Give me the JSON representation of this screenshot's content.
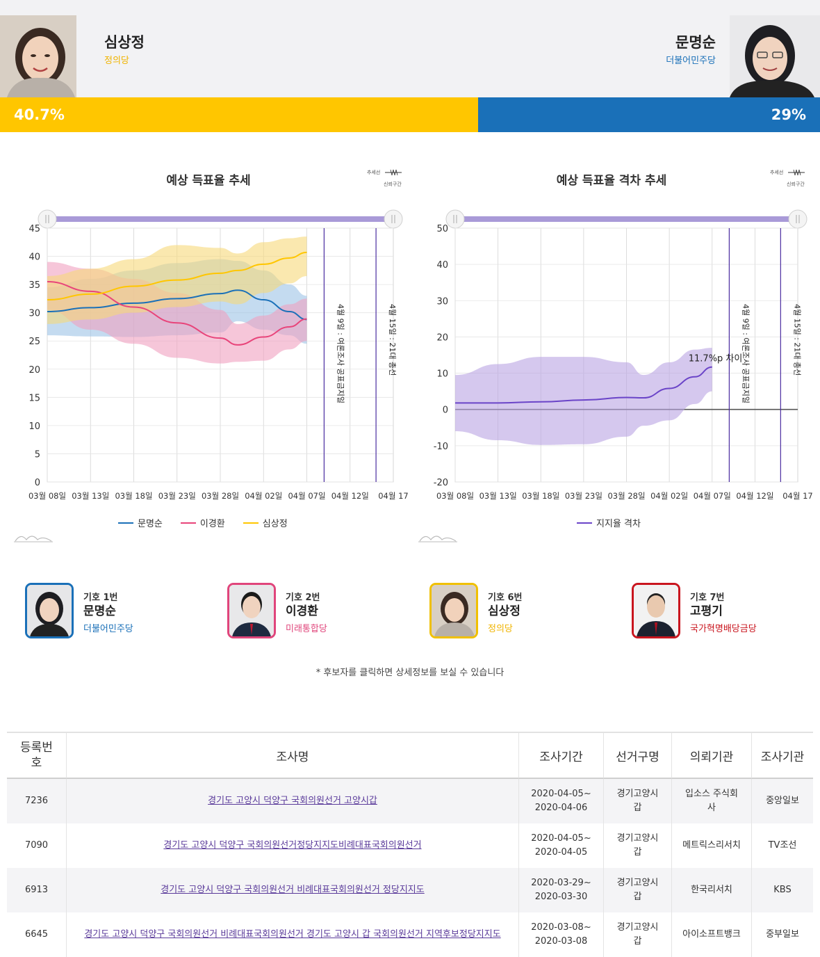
{
  "header": {
    "left": {
      "name": "심상정",
      "party": "정의당",
      "pct": "40.7%",
      "color": "#ffc600",
      "party_color": "#f0b400",
      "share": 0.583
    },
    "right": {
      "name": "문명순",
      "party": "더불어민주당",
      "pct": "29%",
      "color": "#1a70b8",
      "party_color": "#1a70b8"
    }
  },
  "charts": {
    "left": {
      "title": "예상 득표율 추세",
      "mini_legend": [
        "추세선",
        "신뢰구간"
      ]
    },
    "right": {
      "title": "예상 득표율 격차 추세",
      "mini_legend": [
        "추세선",
        "신뢰구간"
      ],
      "annotation": "11.7%p 차이"
    }
  },
  "chart_data": [
    {
      "type": "line",
      "title": "예상 득표율 추세",
      "x_ticks": [
        "03월 08일",
        "03월 13일",
        "03월 18일",
        "03월 23일",
        "03월 28일",
        "04월 02일",
        "04월 07일",
        "04월 12일",
        "04월 17"
      ],
      "y_ticks": [
        0,
        5,
        10,
        15,
        20,
        25,
        30,
        35,
        40,
        45
      ],
      "ylim": [
        0,
        45
      ],
      "xlim": [
        "2020-03-08",
        "2020-04-17"
      ],
      "markers": [
        {
          "date": "2020-04-09",
          "label": "4월 9일 : 여론조사 공표금지일"
        },
        {
          "date": "2020-04-15",
          "label": "4월 15일 : 21대 총선"
        }
      ],
      "grid": true,
      "legend_position": "bottom",
      "series": [
        {
          "name": "문명순",
          "color": "#1a70b8",
          "band_color": "#9cc3e6",
          "dates": [
            "2020-03-08",
            "2020-03-13",
            "2020-03-18",
            "2020-03-23",
            "2020-03-28",
            "2020-03-30",
            "2020-04-02",
            "2020-04-05",
            "2020-04-07"
          ],
          "values": [
            30.2,
            30.9,
            31.7,
            32.5,
            33.4,
            34.0,
            32.3,
            30.2,
            28.8
          ],
          "band_low": [
            26.0,
            25.8,
            25.7,
            26.0,
            26.5,
            28.5,
            27.0,
            26.0,
            24.5
          ],
          "band_high": [
            34.5,
            36.0,
            37.5,
            38.8,
            39.5,
            39.2,
            37.5,
            35.0,
            33.0
          ]
        },
        {
          "name": "이경환",
          "color": "#e8447a",
          "band_color": "#f0a0bf",
          "dates": [
            "2020-03-08",
            "2020-03-13",
            "2020-03-18",
            "2020-03-23",
            "2020-03-28",
            "2020-03-30",
            "2020-04-02",
            "2020-04-05",
            "2020-04-07"
          ],
          "values": [
            35.5,
            33.8,
            31.0,
            28.2,
            25.5,
            24.3,
            25.7,
            27.5,
            28.9
          ],
          "band_low": [
            30.5,
            27.0,
            24.5,
            22.0,
            21.0,
            21.3,
            21.5,
            23.5,
            25.0
          ],
          "band_high": [
            39.0,
            37.8,
            36.0,
            33.5,
            30.5,
            28.0,
            29.5,
            31.5,
            32.5
          ]
        },
        {
          "name": "심상정",
          "color": "#ffc600",
          "band_color": "#f7d87a",
          "dates": [
            "2020-03-08",
            "2020-03-13",
            "2020-03-18",
            "2020-03-23",
            "2020-03-28",
            "2020-03-30",
            "2020-04-02",
            "2020-04-05",
            "2020-04-07"
          ],
          "values": [
            32.3,
            33.3,
            34.7,
            35.8,
            37.0,
            37.5,
            38.6,
            39.7,
            40.7
          ],
          "band_low": [
            28.0,
            28.8,
            30.0,
            31.0,
            32.0,
            31.5,
            33.5,
            35.2,
            36.5
          ],
          "band_high": [
            36.5,
            37.8,
            39.5,
            42.0,
            41.5,
            40.5,
            42.5,
            43.2,
            43.5
          ]
        }
      ]
    },
    {
      "type": "line",
      "title": "예상 득표율 격차 추세",
      "x_ticks": [
        "03월 08일",
        "03월 13일",
        "03월 18일",
        "03월 23일",
        "03월 28일",
        "04월 02일",
        "04월 07일",
        "04월 12일",
        "04월 17"
      ],
      "y_ticks": [
        -20,
        -10,
        0,
        10,
        20,
        30,
        40,
        50
      ],
      "ylim": [
        -20,
        50
      ],
      "xlim": [
        "2020-03-08",
        "2020-04-17"
      ],
      "markers": [
        {
          "date": "2020-04-09",
          "label": "4월 9일 : 여론조사 공표금지일"
        },
        {
          "date": "2020-04-15",
          "label": "4월 15일 : 21대 총선"
        }
      ],
      "grid": true,
      "legend_position": "bottom",
      "series": [
        {
          "name": "지지율 격차",
          "color": "#6a44c8",
          "band_color": "#b9a4e2",
          "dates": [
            "2020-03-08",
            "2020-03-13",
            "2020-03-18",
            "2020-03-23",
            "2020-03-28",
            "2020-03-30",
            "2020-04-02",
            "2020-04-05",
            "2020-04-07"
          ],
          "values": [
            1.8,
            1.8,
            2.1,
            2.6,
            3.3,
            3.2,
            5.8,
            9.0,
            11.7
          ],
          "band_low": [
            -6.0,
            -8.5,
            -9.8,
            -9.6,
            -7.5,
            -4.5,
            -3.0,
            1.5,
            5.0
          ],
          "band_high": [
            9.5,
            12.5,
            14.5,
            14.5,
            13.0,
            9.5,
            13.0,
            16.5,
            17.0
          ]
        }
      ]
    }
  ],
  "candidates": [
    {
      "num": "기호 1번",
      "name": "문명순",
      "party": "더불어민주당",
      "color": "#1a70b8"
    },
    {
      "num": "기호 2번",
      "name": "이경환",
      "party": "미래통합당",
      "color": "#e0457b"
    },
    {
      "num": "기호 6번",
      "name": "심상정",
      "party": "정의당",
      "color": "#f0b400"
    },
    {
      "num": "기호 7번",
      "name": "고평기",
      "party": "국가혁명배당금당",
      "color": "#c9151e"
    }
  ],
  "note": "* 후보자를 클릭하면 상세정보를 보실 수 있습니다",
  "table": {
    "headers": [
      "등록번호",
      "조사명",
      "조사기간",
      "선거구명",
      "의뢰기관",
      "조사기관"
    ],
    "rows": [
      {
        "id": "7236",
        "title": "경기도 고양시 덕양구 국회의원선거 고양시갑",
        "period": [
          "2020-04-05~",
          "2020-04-06"
        ],
        "district": [
          "경기고양시",
          "갑"
        ],
        "client": [
          "입소스 주식회",
          "사"
        ],
        "agency": "중앙일보"
      },
      {
        "id": "7090",
        "title": "경기도 고양시 덕양구 국회의원선거정당지지도비례대표국회의원선거",
        "period": [
          "2020-04-05~",
          "2020-04-05"
        ],
        "district": [
          "경기고양시",
          "갑"
        ],
        "client": [
          "메트릭스리서치"
        ],
        "agency": "TV조선"
      },
      {
        "id": "6913",
        "title": "경기도 고양시 덕양구 국회의원선거 비례대표국회의원선거 정당지지도",
        "period": [
          "2020-03-29~",
          "2020-03-30"
        ],
        "district": [
          "경기고양시",
          "갑"
        ],
        "client": [
          "한국리서치"
        ],
        "agency": "KBS"
      },
      {
        "id": "6645",
        "title": "경기도 고양시 덕양구 국회의원선거 비례대표국회의원선거 경기도 고양시 갑 국회의원선거 지역후보정당지지도",
        "period": [
          "2020-03-08~",
          "2020-03-08"
        ],
        "district": [
          "경기고양시",
          "갑"
        ],
        "client": [
          "아이소프트뱅크"
        ],
        "agency": "중부일보"
      }
    ]
  }
}
